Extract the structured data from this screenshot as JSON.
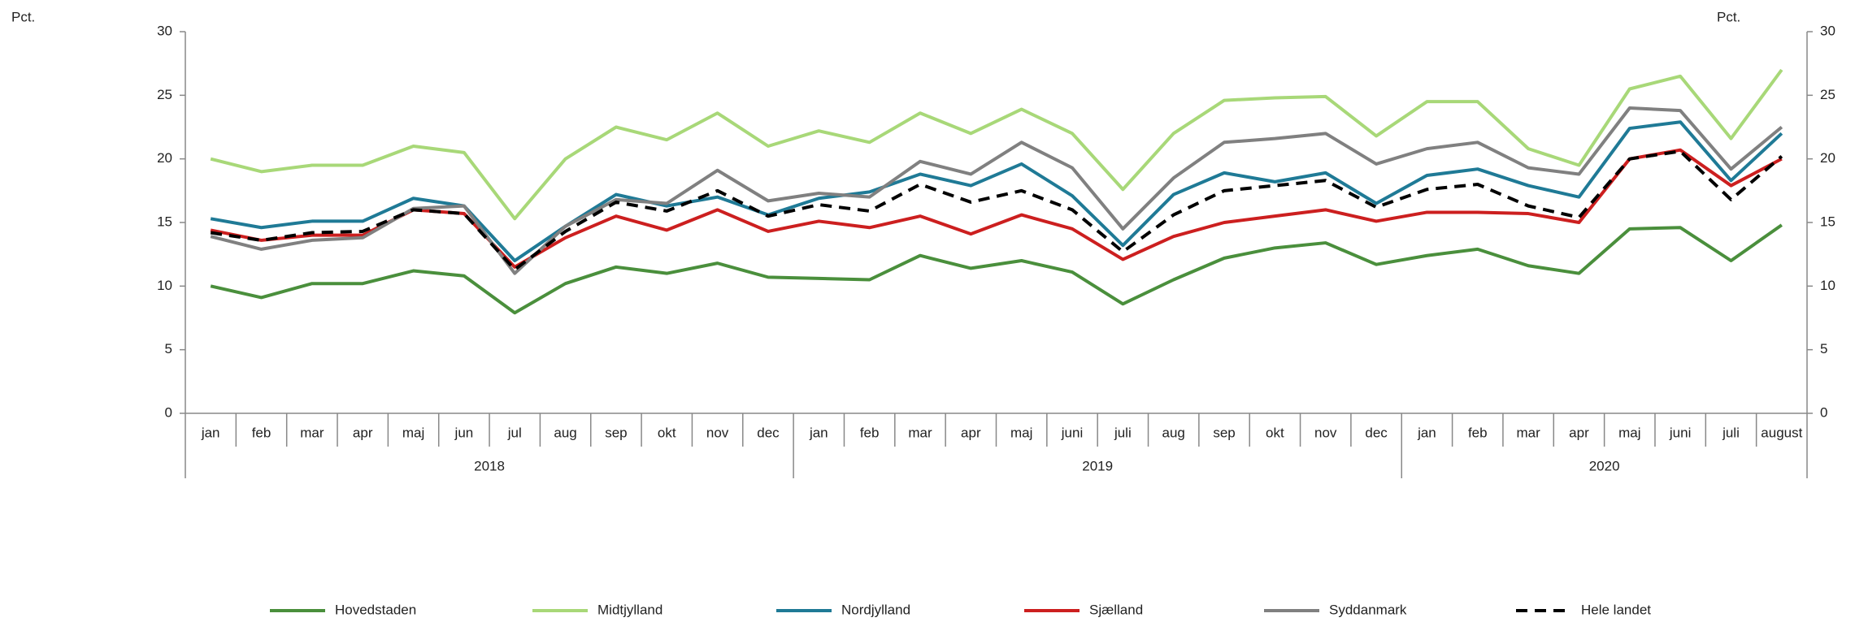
{
  "chart_data": {
    "type": "line",
    "y_label": "Pct.",
    "y2_label": "Pct.",
    "categories": [
      "jan",
      "feb",
      "mar",
      "apr",
      "maj",
      "jun",
      "jul",
      "aug",
      "sep",
      "okt",
      "nov",
      "dec",
      "jan",
      "feb",
      "mar",
      "apr",
      "maj",
      "juni",
      "juli",
      "aug",
      "sep",
      "okt",
      "nov",
      "dec",
      "jan",
      "feb",
      "mar",
      "apr",
      "maj",
      "juni",
      "juli",
      "august"
    ],
    "x_groups": [
      {
        "label": "2018",
        "count": 12
      },
      {
        "label": "2019",
        "count": 12
      },
      {
        "label": "2020",
        "count": 8
      }
    ],
    "ylim": [
      0,
      30
    ],
    "yticks": [
      0,
      5,
      10,
      15,
      20,
      25,
      30
    ],
    "y2lim": [
      0,
      30
    ],
    "y2ticks": [
      0,
      5,
      10,
      15,
      20,
      25,
      30
    ],
    "grid": false,
    "legend": "bottom",
    "series": [
      {
        "name": "Hovedstaden",
        "color": "#4a8f3c",
        "dash": false,
        "values": [
          10,
          9.1,
          10.2,
          10.2,
          11.2,
          10.8,
          7.9,
          10.2,
          11.5,
          11,
          11.8,
          10.7,
          10.6,
          10.5,
          12.4,
          11.4,
          12,
          11.1,
          8.6,
          10.5,
          12.2,
          13,
          13.4,
          11.7,
          12.4,
          12.9,
          11.6,
          11,
          14.5,
          14.6,
          12,
          14.8
        ]
      },
      {
        "name": "Midtjylland",
        "color": "#a8d878",
        "dash": false,
        "values": [
          20,
          19,
          19.5,
          19.5,
          21,
          20.5,
          15.3,
          20,
          22.5,
          21.5,
          23.6,
          21,
          22.2,
          21.3,
          23.6,
          22,
          23.9,
          22,
          17.6,
          22,
          24.6,
          24.8,
          24.9,
          21.8,
          24.5,
          24.5,
          20.8,
          19.5,
          25.5,
          26.5,
          21.6,
          27
        ]
      },
      {
        "name": "Nordjylland",
        "color": "#1f7a96",
        "dash": false,
        "values": [
          15.3,
          14.6,
          15.1,
          15.1,
          16.9,
          16.3,
          12,
          14.7,
          17.2,
          16.3,
          17,
          15.6,
          16.9,
          17.4,
          18.8,
          17.9,
          19.6,
          17.1,
          13.2,
          17.2,
          18.9,
          18.2,
          18.9,
          16.5,
          18.7,
          19.2,
          17.9,
          17,
          22.4,
          22.9,
          18.3,
          22
        ]
      },
      {
        "name": "Sjælland",
        "color": "#cc1f1f",
        "dash": false,
        "values": [
          14.4,
          13.6,
          14,
          14,
          16,
          15.7,
          11.5,
          13.8,
          15.5,
          14.4,
          16,
          14.3,
          15.1,
          14.6,
          15.5,
          14.1,
          15.6,
          14.5,
          12.1,
          13.9,
          15,
          15.5,
          16,
          15.1,
          15.8,
          15.8,
          15.7,
          15,
          20,
          20.7,
          17.9,
          20
        ]
      },
      {
        "name": "Syddanmark",
        "color": "#808080",
        "dash": false,
        "values": [
          13.9,
          12.9,
          13.6,
          13.8,
          16.1,
          16.3,
          11,
          14.7,
          16.8,
          16.5,
          19.1,
          16.7,
          17.3,
          17,
          19.8,
          18.8,
          21.3,
          19.3,
          14.5,
          18.5,
          21.3,
          21.6,
          22,
          19.6,
          20.8,
          21.3,
          19.3,
          18.8,
          24,
          23.8,
          19.2,
          22.5
        ]
      },
      {
        "name": "Hele landet",
        "color": "#000000",
        "dash": true,
        "values": [
          14.2,
          13.6,
          14.2,
          14.3,
          16,
          15.7,
          11.3,
          14.3,
          16.6,
          15.9,
          17.5,
          15.5,
          16.4,
          15.9,
          18,
          16.6,
          17.5,
          16,
          12.7,
          15.6,
          17.5,
          17.9,
          18.3,
          16.2,
          17.6,
          18,
          16.3,
          15.4,
          20,
          20.6,
          16.8,
          20.2
        ]
      }
    ]
  }
}
